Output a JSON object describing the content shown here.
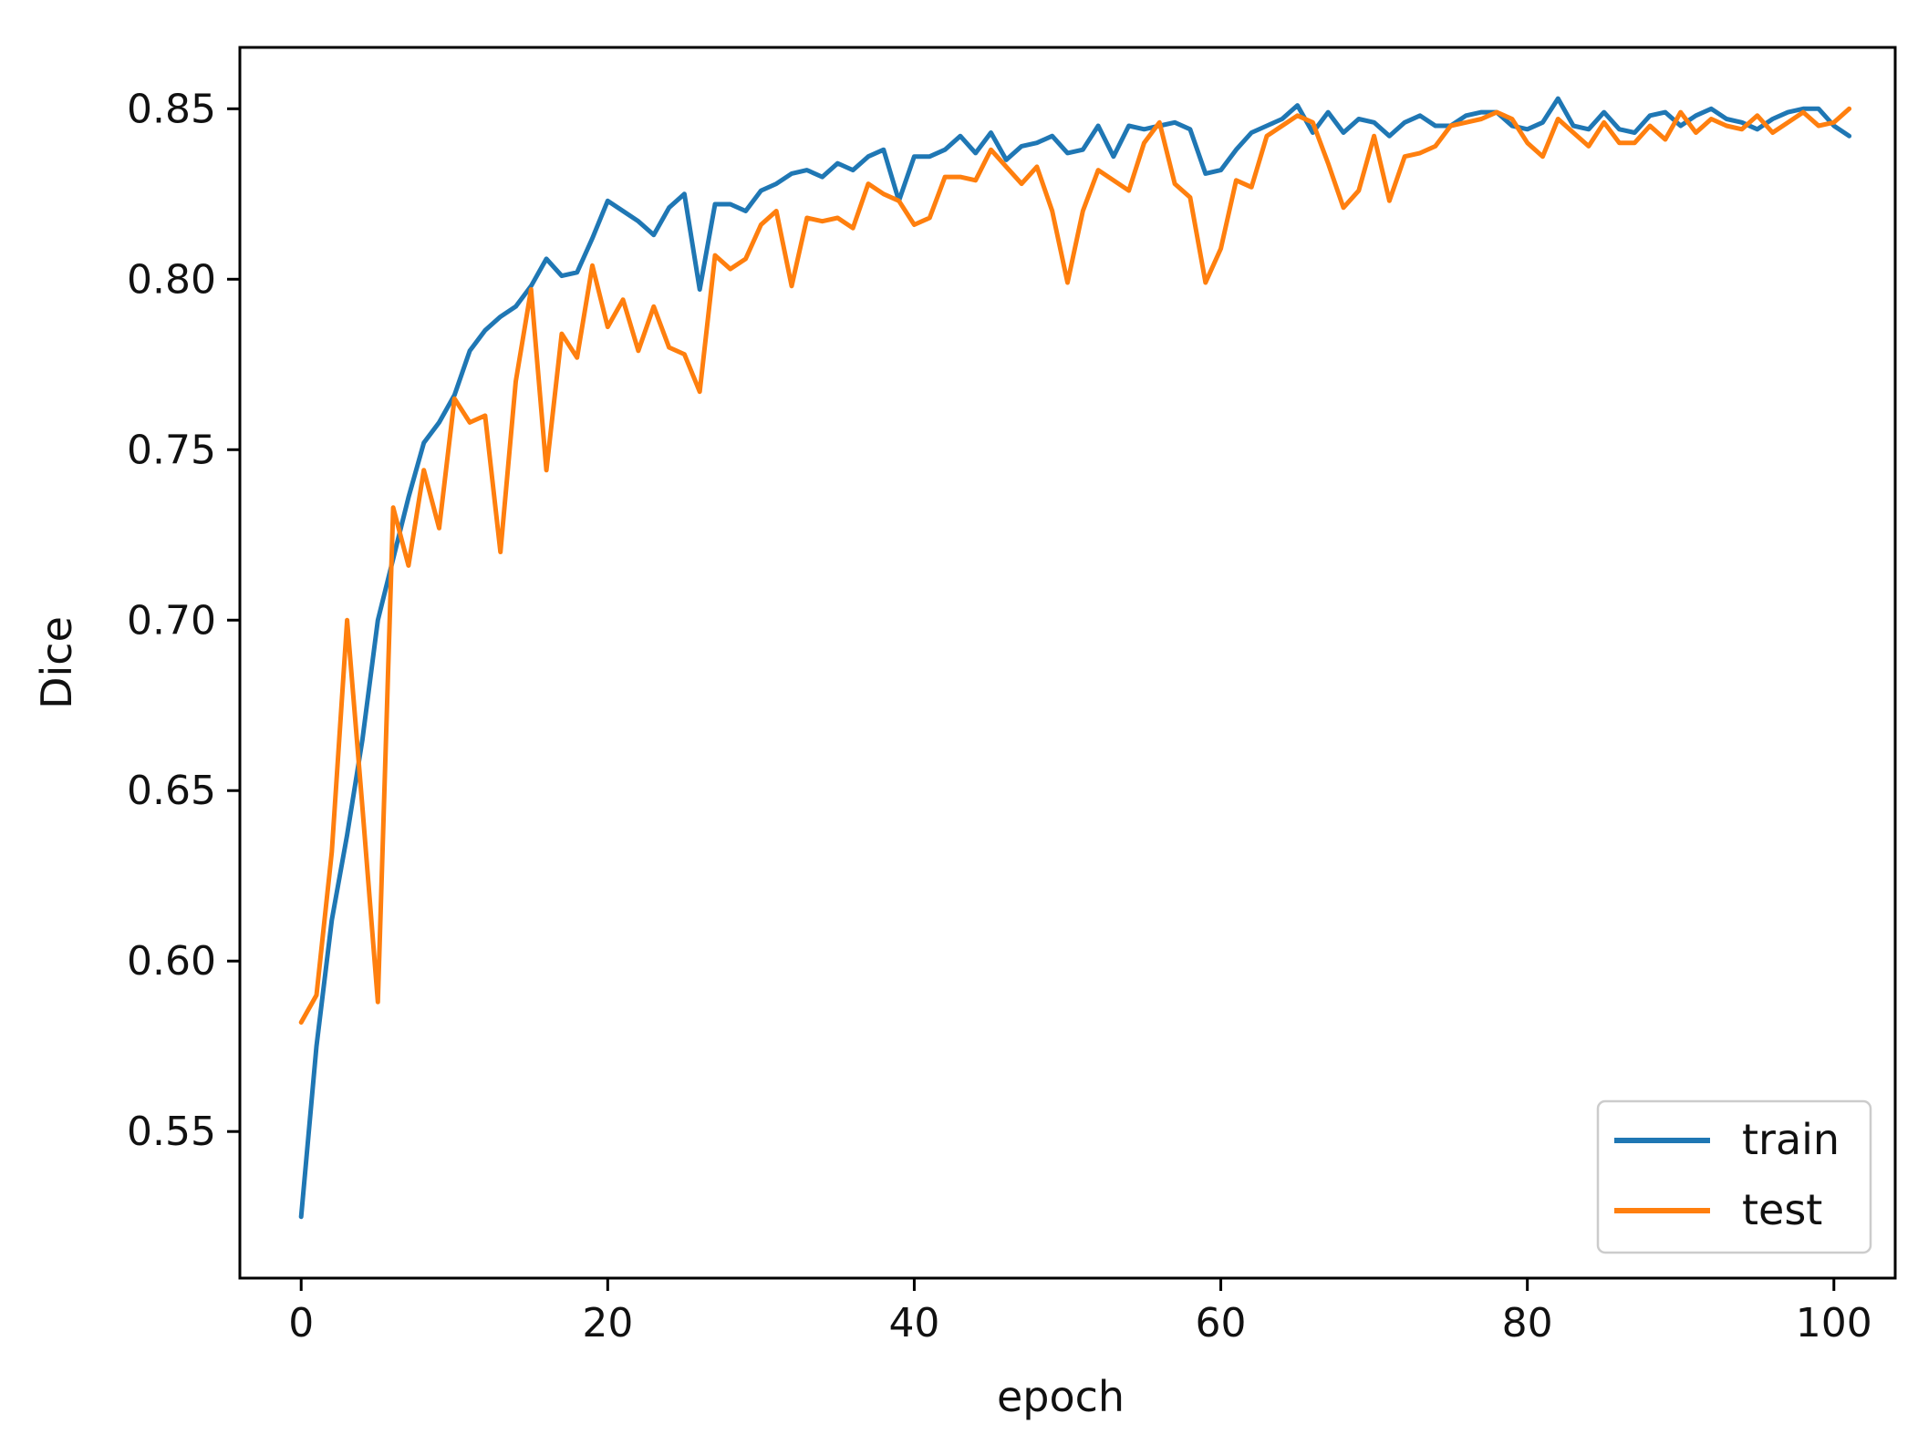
{
  "chart_data": {
    "type": "line",
    "title": "",
    "xlabel": "epoch",
    "ylabel": "Dice",
    "xlim": [
      -4,
      104
    ],
    "ylim": [
      0.507,
      0.868
    ],
    "x_ticks": [
      0,
      20,
      40,
      60,
      80,
      100
    ],
    "y_ticks": [
      0.55,
      0.6,
      0.65,
      0.7,
      0.75,
      0.8,
      0.85
    ],
    "x_tick_labels": [
      "0",
      "20",
      "40",
      "60",
      "80",
      "100"
    ],
    "y_tick_labels": [
      "0.55",
      "0.60",
      "0.65",
      "0.70",
      "0.75",
      "0.80",
      "0.85"
    ],
    "grid": false,
    "legend_position": "bottom-right",
    "x": [
      0,
      1,
      2,
      3,
      4,
      5,
      6,
      7,
      8,
      9,
      10,
      11,
      12,
      13,
      14,
      15,
      16,
      17,
      18,
      19,
      20,
      21,
      22,
      23,
      24,
      25,
      26,
      27,
      28,
      29,
      30,
      31,
      32,
      33,
      34,
      35,
      36,
      37,
      38,
      39,
      40,
      41,
      42,
      43,
      44,
      45,
      46,
      47,
      48,
      49,
      50,
      51,
      52,
      53,
      54,
      55,
      56,
      57,
      58,
      59,
      60,
      61,
      62,
      63,
      64,
      65,
      66,
      67,
      68,
      69,
      70,
      71,
      72,
      73,
      74,
      75,
      76,
      77,
      78,
      79,
      80,
      81,
      82,
      83,
      84,
      85,
      86,
      87,
      88,
      89,
      90,
      91,
      92,
      93,
      94,
      95,
      96,
      97,
      98,
      99,
      100,
      101
    ],
    "series": [
      {
        "name": "train",
        "color": "#1f77b4",
        "values": [
          0.525,
          0.575,
          0.612,
          0.637,
          0.665,
          0.7,
          0.718,
          0.736,
          0.752,
          0.758,
          0.766,
          0.779,
          0.785,
          0.789,
          0.792,
          0.798,
          0.806,
          0.801,
          0.802,
          0.812,
          0.823,
          0.82,
          0.817,
          0.813,
          0.821,
          0.825,
          0.797,
          0.822,
          0.822,
          0.82,
          0.826,
          0.828,
          0.831,
          0.832,
          0.83,
          0.834,
          0.832,
          0.836,
          0.838,
          0.823,
          0.836,
          0.836,
          0.838,
          0.842,
          0.837,
          0.843,
          0.835,
          0.839,
          0.84,
          0.842,
          0.837,
          0.838,
          0.845,
          0.836,
          0.845,
          0.844,
          0.845,
          0.846,
          0.844,
          0.831,
          0.832,
          0.838,
          0.843,
          0.845,
          0.847,
          0.851,
          0.843,
          0.849,
          0.843,
          0.847,
          0.846,
          0.842,
          0.846,
          0.848,
          0.845,
          0.845,
          0.848,
          0.849,
          0.849,
          0.845,
          0.844,
          0.846,
          0.853,
          0.845,
          0.844,
          0.849,
          0.844,
          0.843,
          0.848,
          0.849,
          0.845,
          0.848,
          0.85,
          0.847,
          0.846,
          0.844,
          0.847,
          0.849,
          0.85,
          0.85,
          0.845,
          0.842
        ]
      },
      {
        "name": "test",
        "color": "#ff7f0e",
        "values": [
          0.582,
          0.59,
          0.632,
          0.7,
          0.645,
          0.588,
          0.733,
          0.716,
          0.744,
          0.727,
          0.765,
          0.758,
          0.76,
          0.72,
          0.77,
          0.797,
          0.744,
          0.784,
          0.777,
          0.804,
          0.786,
          0.794,
          0.779,
          0.792,
          0.78,
          0.778,
          0.767,
          0.807,
          0.803,
          0.806,
          0.816,
          0.82,
          0.798,
          0.818,
          0.817,
          0.818,
          0.815,
          0.828,
          0.825,
          0.823,
          0.816,
          0.818,
          0.83,
          0.83,
          0.829,
          0.838,
          0.833,
          0.828,
          0.833,
          0.82,
          0.799,
          0.82,
          0.832,
          0.829,
          0.826,
          0.84,
          0.846,
          0.828,
          0.824,
          0.799,
          0.809,
          0.829,
          0.827,
          0.842,
          0.845,
          0.848,
          0.846,
          0.834,
          0.821,
          0.826,
          0.842,
          0.823,
          0.836,
          0.837,
          0.839,
          0.845,
          0.846,
          0.847,
          0.849,
          0.847,
          0.84,
          0.836,
          0.847,
          0.843,
          0.839,
          0.846,
          0.84,
          0.84,
          0.845,
          0.841,
          0.849,
          0.843,
          0.847,
          0.845,
          0.844,
          0.848,
          0.843,
          0.846,
          0.849,
          0.845,
          0.846,
          0.85
        ]
      }
    ]
  }
}
